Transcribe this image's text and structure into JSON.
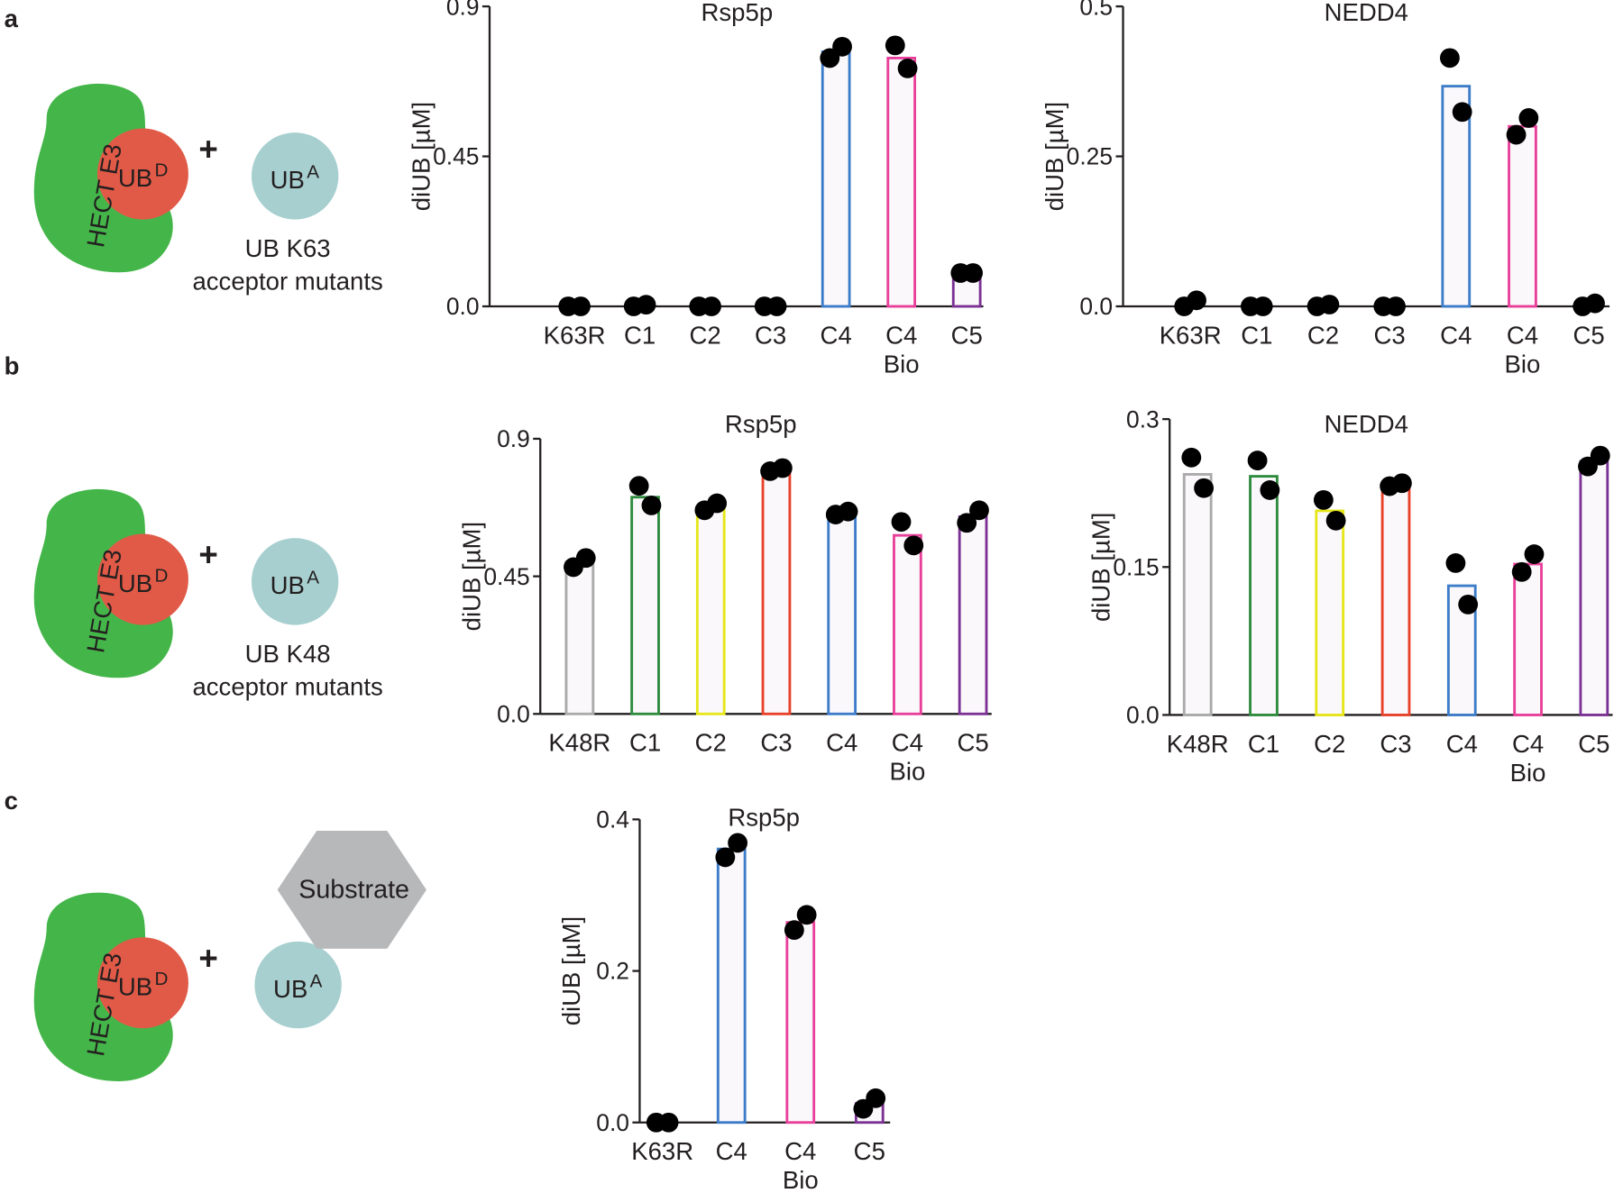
{
  "panel_labels": [
    "a",
    "b",
    "c"
  ],
  "diagrams": [
    {
      "e3": "HECT E3",
      "donor": "UB",
      "donor_sup": "D",
      "plus": "+",
      "acceptor": "UB",
      "acceptor_sup": "A",
      "caption": [
        "UB K63",
        "acceptor mutants"
      ]
    },
    {
      "e3": "HECT E3",
      "donor": "UB",
      "donor_sup": "D",
      "plus": "+",
      "acceptor": "UB",
      "acceptor_sup": "A",
      "caption": [
        "UB K48",
        "acceptor mutants"
      ]
    },
    {
      "e3": "HECT E3",
      "donor": "UB",
      "donor_sup": "D",
      "plus": "+",
      "acceptor": "UB",
      "acceptor_sup": "A",
      "substrate": "Substrate"
    }
  ],
  "chart_data": [
    {
      "type": "bar",
      "title": "Rsp5p",
      "y_label": "diUB [µM]",
      "categories": [
        "K63R",
        "C1",
        "C2",
        "C3",
        "C4",
        "C4 Bio",
        "C5"
      ],
      "colors": [
        "#aaaaaa",
        "#2e8b3e",
        "#e6e619",
        "#e8412a",
        "#3d7cc9",
        "#e8409a",
        "#7b3294"
      ],
      "values": [
        0,
        0,
        0,
        0,
        0.764,
        0.745,
        0.099
      ],
      "points": [
        [
          0,
          0
        ],
        [
          0,
          0.005
        ],
        [
          0,
          0
        ],
        [
          0,
          0
        ],
        [
          0.745,
          0.779
        ],
        [
          0.783,
          0.714
        ],
        [
          0.1,
          0.1
        ]
      ],
      "ylim": [
        0,
        0.9
      ],
      "yticks": [
        {
          "value": 0,
          "label": "0.0"
        },
        0.45,
        0.9
      ]
    },
    {
      "type": "bar",
      "title": "NEDD4",
      "y_label": "diUB [µM]",
      "categories": [
        "K63R",
        "C1",
        "C2",
        "C3",
        "C4",
        "C4 Bio",
        "C5"
      ],
      "colors": [
        "#aaaaaa",
        "#2e8b3e",
        "#e6e619",
        "#e8412a",
        "#3d7cc9",
        "#e8409a",
        "#7b3294"
      ],
      "values": [
        0,
        0,
        0,
        0,
        0.367,
        0.3,
        0
      ],
      "points": [
        [
          0,
          0.01
        ],
        [
          0,
          0
        ],
        [
          0,
          0.003
        ],
        [
          0,
          0
        ],
        [
          0.414,
          0.324
        ],
        [
          0.286,
          0.314
        ],
        [
          0,
          0.005
        ]
      ],
      "ylim": [
        0,
        0.5
      ],
      "yticks": [
        {
          "value": 0,
          "label": "0.0"
        },
        0.25,
        0.5
      ]
    },
    {
      "type": "bar",
      "title": "Rsp5p",
      "y_label": "diUB [µM]",
      "categories": [
        "K48R",
        "C1",
        "C2",
        "C3",
        "C4",
        "C4 Bio",
        "C5"
      ],
      "colors": [
        "#aaaaaa",
        "#2e8b3e",
        "#e6e619",
        "#e8412a",
        "#3d7cc9",
        "#e8409a",
        "#7b3294"
      ],
      "values": [
        0.497,
        0.709,
        0.676,
        0.8,
        0.659,
        0.584,
        0.645
      ],
      "points": [
        [
          0.48,
          0.51
        ],
        [
          0.746,
          0.682
        ],
        [
          0.666,
          0.689
        ],
        [
          0.794,
          0.804
        ],
        [
          0.652,
          0.662
        ],
        [
          0.628,
          0.551
        ],
        [
          0.625,
          0.666
        ]
      ],
      "ylim": [
        0,
        0.9
      ],
      "yticks": [
        {
          "value": 0,
          "label": "0.0"
        },
        0.45,
        0.9
      ]
    },
    {
      "type": "bar",
      "title": "NEDD4",
      "y_label": "diUB [µM]",
      "categories": [
        "K48R",
        "C1",
        "C2",
        "C3",
        "C4",
        "C4 Bio",
        "C5"
      ],
      "colors": [
        "#aaaaaa",
        "#2e8b3e",
        "#e6e619",
        "#e8412a",
        "#3d7cc9",
        "#e8409a",
        "#7b3294"
      ],
      "values": [
        0.244,
        0.242,
        0.207,
        0.233,
        0.131,
        0.153,
        0.257
      ],
      "points": [
        [
          0.261,
          0.23
        ],
        [
          0.258,
          0.228
        ],
        [
          0.218,
          0.197
        ],
        [
          0.232,
          0.235
        ],
        [
          0.154,
          0.112
        ],
        [
          0.145,
          0.163
        ],
        [
          0.252,
          0.263
        ]
      ],
      "ylim": [
        0,
        0.3
      ],
      "yticks": [
        {
          "value": 0,
          "label": "0.0"
        },
        0.15,
        0.3
      ]
    },
    {
      "type": "bar",
      "title": "Rsp5p",
      "y_label": "diUB [µM]",
      "categories": [
        "K63R",
        "C4",
        "C4 Bio",
        "C5"
      ],
      "colors": [
        "#aaaaaa",
        "#3d7cc9",
        "#e8409a",
        "#7b3294"
      ],
      "values": [
        0,
        0.361,
        0.264,
        0.025
      ],
      "points": [
        [
          0,
          0
        ],
        [
          0.35,
          0.369
        ],
        [
          0.254,
          0.274
        ],
        [
          0.018,
          0.032
        ]
      ],
      "ylim": [
        0,
        0.4
      ],
      "yticks": [
        {
          "value": 0,
          "label": "0.0"
        },
        0.2,
        0.4
      ]
    }
  ]
}
